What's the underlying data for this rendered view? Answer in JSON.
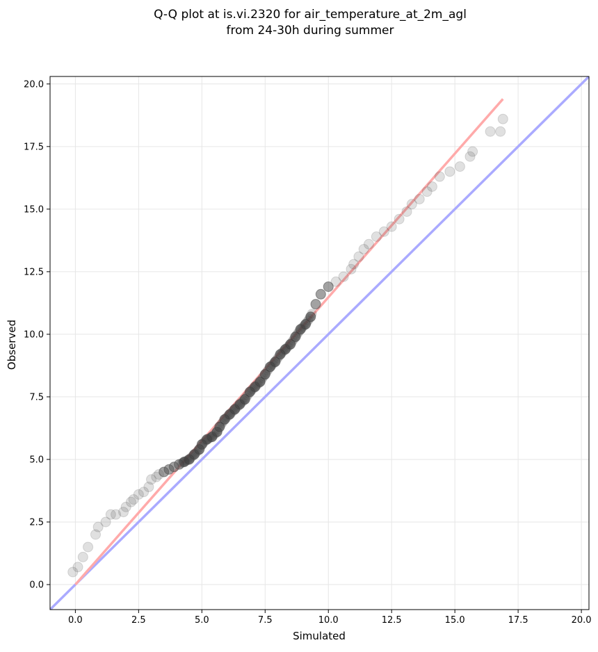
{
  "chart_data": {
    "type": "scatter",
    "title_line1": "Q-Q plot at is.vi.2320 for air_temperature_at_2m_agl",
    "title_line2": "from 24-30h during summer",
    "xlabel": "Simulated",
    "ylabel": "Observed",
    "xlim": [
      -1.0,
      20.3
    ],
    "ylim": [
      -1.0,
      20.3
    ],
    "xticks": [
      0.0,
      2.5,
      5.0,
      7.5,
      10.0,
      12.5,
      15.0,
      17.5,
      20.0
    ],
    "yticks": [
      0.0,
      2.5,
      5.0,
      7.5,
      10.0,
      12.5,
      15.0,
      17.5,
      20.0
    ],
    "tick_labels": [
      "0.0",
      "2.5",
      "5.0",
      "7.5",
      "10.0",
      "12.5",
      "15.0",
      "17.5",
      "20.0"
    ],
    "grid": true,
    "point_color": "#555555",
    "identity_line": {
      "x": [
        -1.0,
        20.3
      ],
      "y": [
        -1.0,
        20.3
      ],
      "color": "#aaaaff"
    },
    "fit_line": {
      "x": [
        0.0,
        16.9
      ],
      "y": [
        0.0,
        19.4
      ],
      "color": "#ffaaaa"
    },
    "points": {
      "x": [
        -0.1,
        0.1,
        0.3,
        0.5,
        0.8,
        0.9,
        1.2,
        1.4,
        1.6,
        1.9,
        2.0,
        2.2,
        2.3,
        2.5,
        2.7,
        2.9,
        3.0,
        3.2,
        3.3,
        3.5,
        3.7,
        3.9,
        4.1,
        4.3,
        4.5,
        4.7,
        4.9,
        5.0,
        5.2,
        5.4,
        5.6,
        5.7,
        5.9,
        6.1,
        6.3,
        6.5,
        6.7,
        6.9,
        7.1,
        7.3,
        7.5,
        7.7,
        7.9,
        8.1,
        8.3,
        8.5,
        8.7,
        8.9,
        9.1,
        9.3,
        9.5,
        9.7,
        10.0,
        10.3,
        10.6,
        10.9,
        11.0,
        11.2,
        11.4,
        11.6,
        11.9,
        12.2,
        12.5,
        12.8,
        13.1,
        13.3,
        13.6,
        13.9,
        14.1,
        14.4,
        14.8,
        15.2,
        15.6,
        15.7,
        16.4,
        16.8,
        16.9
      ],
      "y": [
        0.5,
        0.7,
        1.1,
        1.5,
        2.0,
        2.3,
        2.5,
        2.8,
        2.8,
        2.9,
        3.1,
        3.3,
        3.4,
        3.6,
        3.7,
        3.9,
        4.2,
        4.3,
        4.4,
        4.5,
        4.6,
        4.7,
        4.8,
        4.9,
        5.0,
        5.2,
        5.4,
        5.6,
        5.8,
        5.9,
        6.1,
        6.3,
        6.6,
        6.8,
        7.0,
        7.2,
        7.4,
        7.7,
        7.9,
        8.1,
        8.4,
        8.7,
        8.9,
        9.2,
        9.4,
        9.6,
        9.9,
        10.2,
        10.4,
        10.7,
        11.2,
        11.6,
        11.9,
        12.1,
        12.3,
        12.6,
        12.8,
        13.1,
        13.4,
        13.6,
        13.9,
        14.1,
        14.3,
        14.6,
        14.9,
        15.2,
        15.4,
        15.7,
        15.9,
        16.3,
        16.5,
        16.7,
        17.1,
        17.3,
        18.1,
        18.1,
        18.6
      ]
    }
  }
}
